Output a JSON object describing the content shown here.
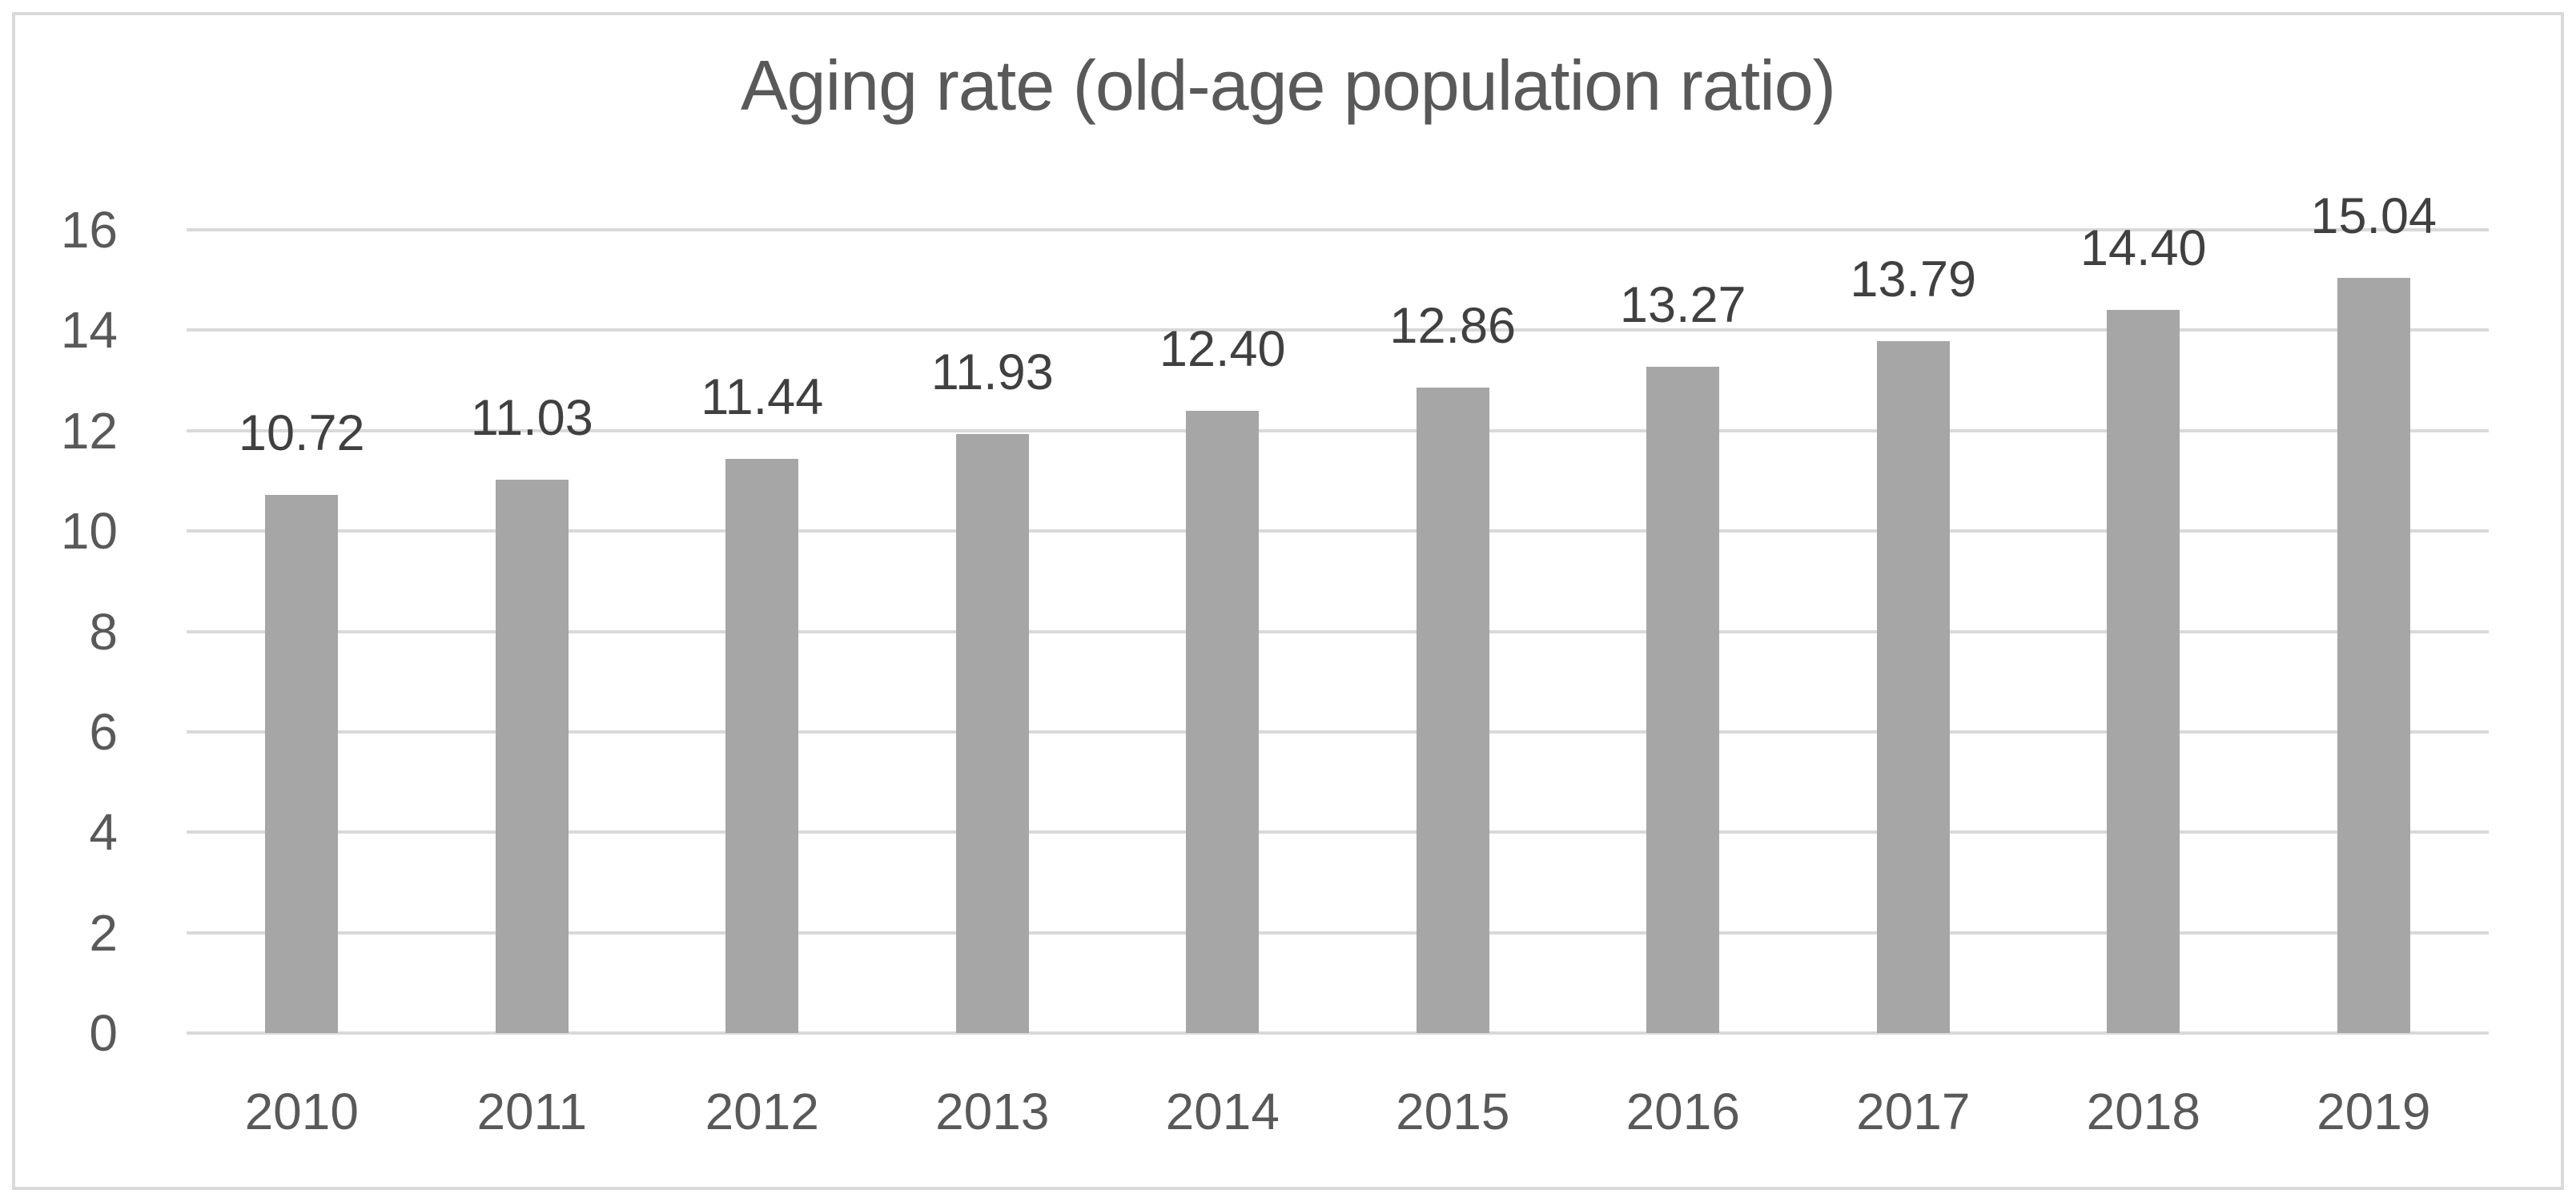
{
  "chart_data": {
    "type": "bar",
    "title": "Aging rate (old-age population ratio)",
    "categories": [
      "2010",
      "2011",
      "2012",
      "2013",
      "2014",
      "2015",
      "2016",
      "2017",
      "2018",
      "2019"
    ],
    "values": [
      10.72,
      11.03,
      11.44,
      11.93,
      12.4,
      12.86,
      13.27,
      13.79,
      14.4,
      15.04
    ],
    "data_labels": [
      "10.72",
      "11.03",
      "11.44",
      "11.93",
      "12.40",
      "12.86",
      "13.27",
      "13.79",
      "14.40",
      "15.04"
    ],
    "xlabel": "",
    "ylabel": "",
    "ylim": [
      0,
      16
    ],
    "yticks": [
      "0",
      "2",
      "4",
      "6",
      "8",
      "10",
      "12",
      "14",
      "16"
    ],
    "ytick_values": [
      0,
      2,
      4,
      6,
      8,
      10,
      12,
      14,
      16
    ],
    "grid": true,
    "legend": "none",
    "colors": {
      "bar_fill": "#a6a6a6",
      "gridline": "#d9d9d9",
      "frame_border": "#d9d9d9",
      "title_text": "#595959",
      "axis_tick_text": "#595959",
      "data_label_text": "#404040",
      "background": "#ffffff"
    }
  }
}
